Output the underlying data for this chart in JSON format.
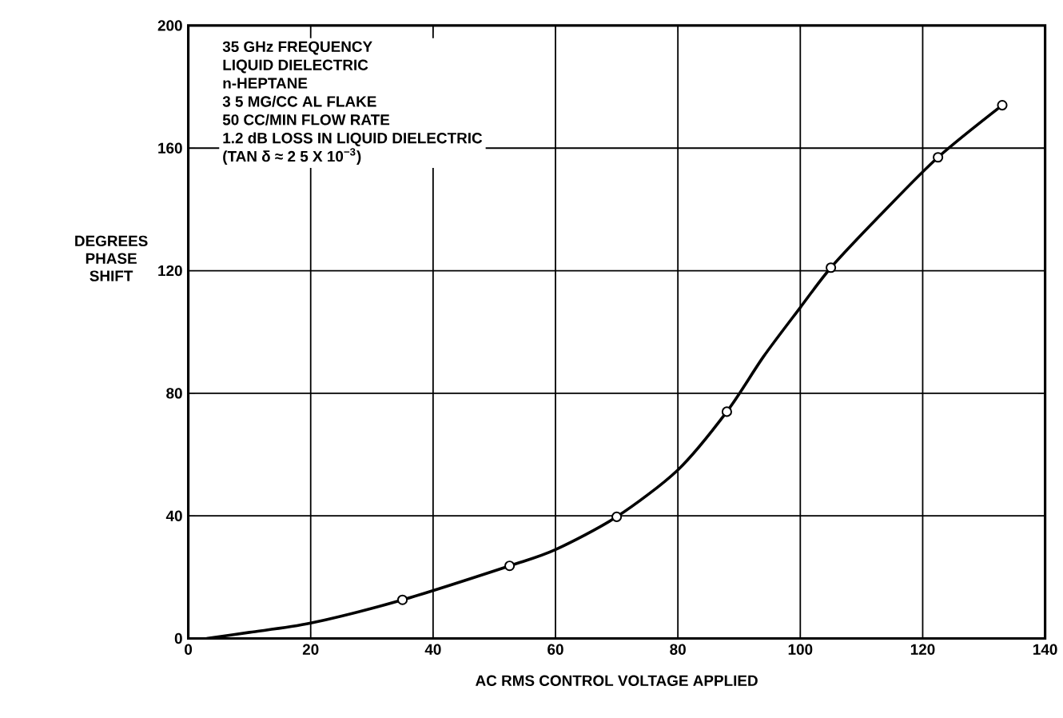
{
  "chart_data": {
    "type": "line",
    "xlabel": "AC RMS CONTROL VOLTAGE APPLIED",
    "ylabel": "DEGREES PHASE SHIFT",
    "xlim": [
      0,
      140
    ],
    "ylim": [
      0,
      200
    ],
    "xticks": [
      0,
      20,
      40,
      60,
      80,
      100,
      120,
      140
    ],
    "yticks": [
      0,
      40,
      80,
      120,
      160,
      200
    ],
    "grid": true,
    "annotations": [
      "35 GHz FREQUENCY",
      "LIQUID DIELECTRIC",
      "n-HEPTANE",
      "3 5 MG/CC AL FLAKE",
      "50 CC/MIN FLOW RATE",
      "1.2 dB LOSS IN LIQUID DIELECTRIC",
      "(TAN δ ≈ 2 5 X 10$^{−3}$)"
    ],
    "series": [
      {
        "color": "#000000",
        "marker": "none",
        "line_style": "solid",
        "x": [
          3,
          10,
          20,
          35,
          52.5,
          60,
          70,
          80,
          88,
          94,
          100,
          105,
          113,
          122.5,
          133
        ],
        "values": [
          0,
          2,
          5,
          12.6,
          23.7,
          29,
          39.7,
          55,
          74,
          92,
          108,
          121,
          138,
          157,
          174
        ]
      },
      {
        "type": "scatter",
        "color": "#000000",
        "marker": "circle",
        "x": [
          35,
          52.5,
          70,
          88,
          105,
          122.5,
          133
        ],
        "values": [
          12.6,
          23.7,
          39.7,
          74,
          121,
          157,
          174
        ]
      }
    ]
  }
}
